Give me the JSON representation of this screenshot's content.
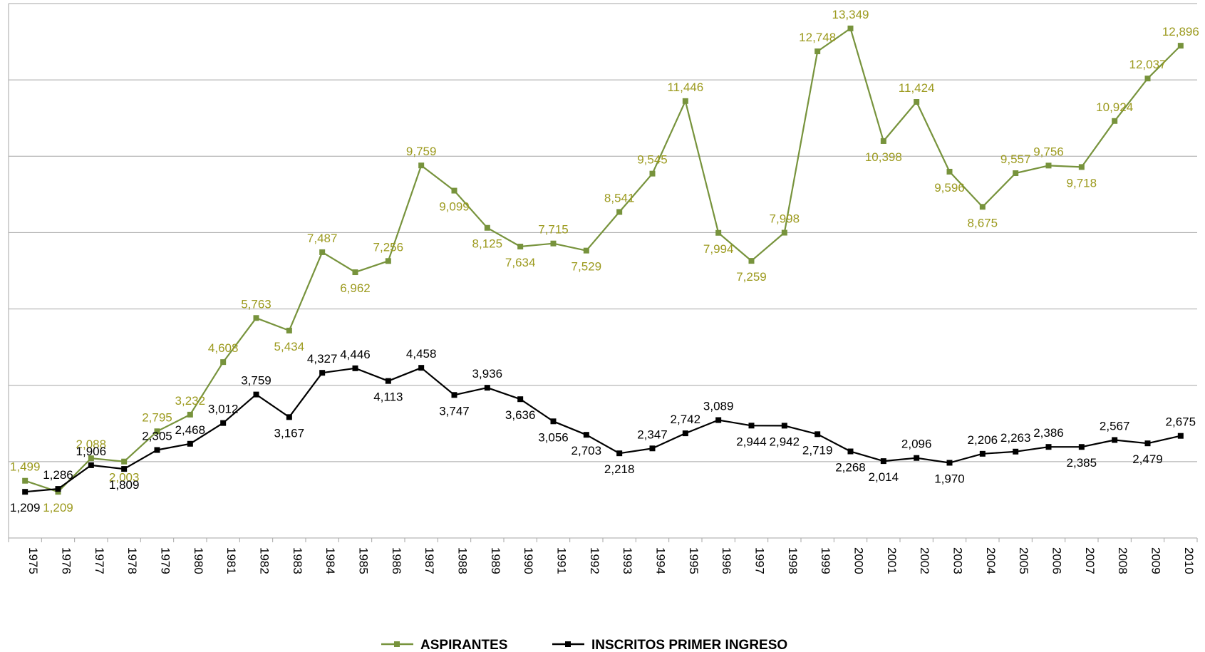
{
  "chart_data": {
    "type": "line",
    "title": "",
    "xlabel": "",
    "ylabel": "",
    "ylim": [
      0,
      14000
    ],
    "grid": true,
    "legend_position": "bottom",
    "x": [
      "1975",
      "1976",
      "1977",
      "1978",
      "1979",
      "1980",
      "1981",
      "1982",
      "1983",
      "1984",
      "1985",
      "1986",
      "1987",
      "1988",
      "1989",
      "1990",
      "1991",
      "1992",
      "1993",
      "1994",
      "1995",
      "1996",
      "1997",
      "1998",
      "1999",
      "2000",
      "2001",
      "2002",
      "2003",
      "2004",
      "2005",
      "2006",
      "2007",
      "2008",
      "2009",
      "2010"
    ],
    "series": [
      {
        "name": "ASPIRANTES",
        "color": "#77933c",
        "label_color": "#9c9a1e",
        "values": [
          1499,
          1209,
          2088,
          2003,
          2795,
          3232,
          4608,
          5763,
          5434,
          7487,
          6962,
          7256,
          9759,
          9099,
          8125,
          7634,
          7715,
          7529,
          8541,
          9545,
          11446,
          7994,
          7259,
          7998,
          12748,
          13349,
          10398,
          11424,
          9596,
          8675,
          9557,
          9756,
          9718,
          10924,
          12037,
          12896
        ],
        "labels": [
          "1,499",
          "1,209",
          "2,088",
          "2,003",
          "2,795",
          "3,232",
          "4,608",
          "5,763",
          "5,434",
          "7,487",
          "6,962",
          "7,256",
          "9,759",
          "9,099",
          "8,125",
          "7,634",
          "7,715",
          "7,529",
          "8,541",
          "9,545",
          "11,446",
          "7,994",
          "7,259",
          "7,998",
          "12,748",
          "13,349",
          "10,398",
          "11,424",
          "9,596",
          "8,675",
          "9,557",
          "9,756",
          "9,718",
          "10,924",
          "12,037",
          "12,896"
        ]
      },
      {
        "name": "INSCRITOS PRIMER INGRESO",
        "color": "#000000",
        "label_color": "#000000",
        "values": [
          1209,
          1286,
          1906,
          1809,
          2305,
          2468,
          3012,
          3759,
          3167,
          4327,
          4446,
          4113,
          4458,
          3747,
          3936,
          3636,
          3056,
          2703,
          2218,
          2347,
          2742,
          3089,
          2944,
          2942,
          2719,
          2268,
          2014,
          2096,
          1970,
          2206,
          2263,
          2386,
          2385,
          2567,
          2479,
          2675
        ],
        "labels": [
          "1,209",
          "1,286",
          "1,906",
          "1,809",
          "2,305",
          "2,468",
          "3,012",
          "3,759",
          "3,167",
          "4,327",
          "4,446",
          "4,113",
          "4,458",
          "3,747",
          "3,936",
          "3,636",
          "3,056",
          "2,703",
          "2,218",
          "2,347",
          "2,742",
          "3,089",
          "2,944",
          "2,942",
          "2,719",
          "2,268",
          "2,014",
          "2,096",
          "1,970",
          "2,206",
          "2,263",
          "2,386",
          "2,385",
          "2,567",
          "2,479",
          "2,675"
        ]
      }
    ]
  }
}
